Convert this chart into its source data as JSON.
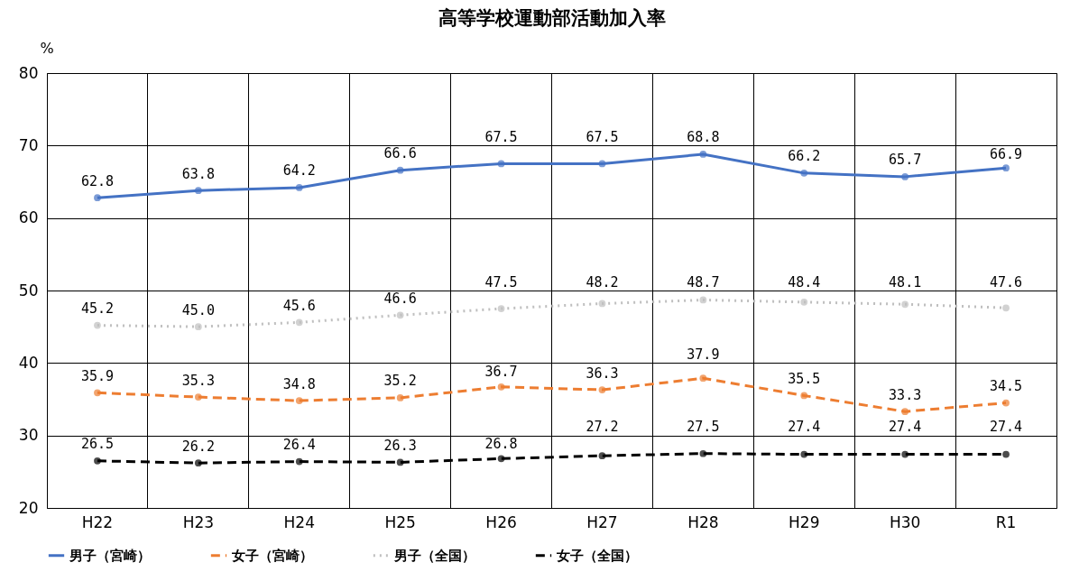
{
  "chart_data": {
    "type": "line",
    "title": "高等学校運動部活動加入率",
    "ylabel": "%",
    "categories": [
      "H22",
      "H23",
      "H24",
      "H25",
      "H26",
      "H27",
      "H28",
      "H29",
      "H30",
      "R1"
    ],
    "ylim": [
      20,
      80
    ],
    "yticks": [
      20,
      30,
      40,
      50,
      60,
      70,
      80
    ],
    "grid": true,
    "legend": "bottom",
    "marker": "circle",
    "series": [
      {
        "name": "男子（宮崎）",
        "color": "#4472c4",
        "line_style": "solid",
        "values": [
          62.8,
          63.8,
          64.2,
          66.6,
          67.5,
          67.5,
          68.8,
          66.2,
          65.7,
          66.9
        ],
        "value_labels": [
          "62.8",
          "63.8",
          "64.2",
          "66.6",
          "67.5",
          "67.5",
          "68.8",
          "66.2",
          "65.7",
          "66.9"
        ]
      },
      {
        "name": "女子（宮崎）",
        "color": "#ed7d31",
        "line_style": "dashed",
        "values": [
          35.9,
          35.3,
          34.8,
          35.2,
          36.7,
          36.3,
          37.9,
          35.5,
          33.3,
          34.5
        ],
        "value_labels": [
          "35.9",
          "35.3",
          "34.8",
          "35.2",
          "36.7",
          "36.3",
          "37.9",
          "35.5",
          "33.3",
          "34.5"
        ]
      },
      {
        "name": "男子（全国）",
        "color": "#bfbfbf",
        "line_style": "dotted",
        "values": [
          45.2,
          45.0,
          45.6,
          46.6,
          47.5,
          48.2,
          48.7,
          48.4,
          48.1,
          47.6
        ],
        "value_labels": [
          "45.2",
          "45.0",
          "45.6",
          "46.6",
          "47.5",
          "48.2",
          "48.7",
          "48.4",
          "48.1",
          "47.6"
        ]
      },
      {
        "name": "女子（全国）",
        "color": "#000000",
        "line_style": "dashed",
        "values": [
          26.5,
          26.2,
          26.4,
          26.3,
          26.8,
          27.2,
          27.5,
          27.4,
          27.4,
          27.4
        ],
        "value_labels": [
          "26.5",
          "26.2",
          "26.4",
          "26.3",
          "26.8",
          "27.2",
          "27.5",
          "27.4",
          "27.4",
          "27.4"
        ]
      }
    ]
  }
}
